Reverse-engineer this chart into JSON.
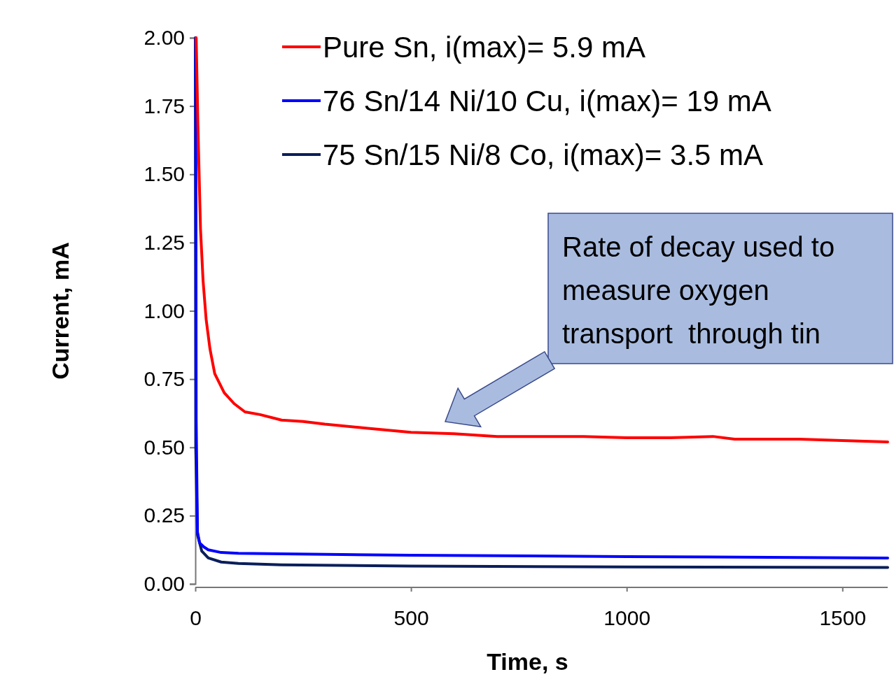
{
  "chart_data": {
    "type": "line",
    "xlabel": "Time, s",
    "ylabel": "Current, mA",
    "xlim": [
      0,
      1605
    ],
    "ylim": [
      0,
      2
    ],
    "xticks": [
      0,
      500,
      1000,
      1500
    ],
    "yticks": [
      {
        "value": 0,
        "label": "0.00"
      },
      {
        "value": 0.25,
        "label": "0.25"
      },
      {
        "value": 0.5,
        "label": "0.50"
      },
      {
        "value": 0.75,
        "label": "0.75"
      },
      {
        "value": 1,
        "label": "1.00"
      },
      {
        "value": 1.25,
        "label": "1.25"
      },
      {
        "value": 1.5,
        "label": "1.50"
      },
      {
        "value": 1.75,
        "label": "1.75"
      },
      {
        "value": 2,
        "label": "2.00"
      }
    ],
    "grid": false,
    "legend": "top right",
    "marker": "none",
    "line_style": "solid",
    "series": [
      {
        "name": "Pure Sn, i(max)= 5.9 mA",
        "color": "#ff0000",
        "x": [
          2,
          6,
          12,
          18,
          25,
          34,
          45,
          67,
          90,
          115,
          150,
          200,
          250,
          300,
          400,
          500,
          600,
          700,
          800,
          900,
          1000,
          1100,
          1200,
          1250,
          1300,
          1400,
          1500,
          1605
        ],
        "values": [
          2.0,
          1.68,
          1.3,
          1.11,
          0.97,
          0.86,
          0.77,
          0.7,
          0.66,
          0.63,
          0.62,
          0.6,
          0.595,
          0.585,
          0.57,
          0.555,
          0.55,
          0.54,
          0.54,
          0.54,
          0.535,
          0.535,
          0.54,
          0.53,
          0.53,
          0.53,
          0.525,
          0.52
        ]
      },
      {
        "name": "76 Sn/14 Ni/10 Cu, i(max)= 19 mA",
        "color": "#0000ff",
        "x": [
          1,
          2,
          5,
          10,
          20,
          30,
          60,
          100,
          200,
          500,
          1000,
          1605
        ],
        "values": [
          2.0,
          0.6,
          0.19,
          0.15,
          0.135,
          0.125,
          0.115,
          0.112,
          0.11,
          0.105,
          0.1,
          0.095
        ]
      },
      {
        "name": "75 Sn/15 Ni/8 Co, i(max)= 3.5 mA",
        "color": "#0a1e5a",
        "x": [
          0,
          1,
          5,
          15,
          30,
          60,
          100,
          200,
          500,
          1000,
          1605
        ],
        "values": [
          2.0,
          0.5,
          0.18,
          0.12,
          0.095,
          0.08,
          0.075,
          0.07,
          0.065,
          0.062,
          0.06
        ]
      }
    ],
    "annotations": [
      "Rate of decay used to measure oxygen transport  through tin"
    ]
  }
}
